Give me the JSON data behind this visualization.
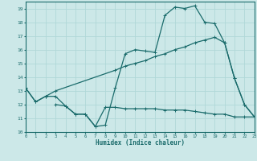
{
  "xlabel": "Humidex (Indice chaleur)",
  "bg_color": "#cce8e8",
  "grid_color": "#b0d8d8",
  "line_color": "#1a6b6b",
  "xlim": [
    0,
    23
  ],
  "ylim": [
    10,
    19.5
  ],
  "xticks": [
    0,
    1,
    2,
    3,
    4,
    5,
    6,
    7,
    8,
    9,
    10,
    11,
    12,
    13,
    14,
    15,
    16,
    17,
    18,
    19,
    20,
    21,
    22,
    23
  ],
  "yticks": [
    10,
    11,
    12,
    13,
    14,
    15,
    16,
    17,
    18,
    19
  ],
  "line1_x": [
    0,
    1,
    2,
    3,
    4,
    5,
    6,
    7,
    8,
    9,
    10,
    11,
    12,
    13,
    14,
    15,
    16,
    17,
    18,
    19,
    20,
    21,
    22,
    23
  ],
  "line1_y": [
    13.2,
    12.2,
    12.6,
    12.6,
    11.9,
    11.3,
    11.3,
    10.4,
    10.5,
    13.2,
    15.7,
    16.0,
    15.9,
    15.8,
    18.5,
    19.1,
    19.0,
    19.2,
    18.0,
    17.9,
    16.5,
    13.9,
    12.0,
    11.1
  ],
  "line2_x": [
    0,
    1,
    2,
    3,
    9,
    10,
    11,
    12,
    13,
    14,
    15,
    16,
    17,
    18,
    19,
    20,
    21,
    22,
    23
  ],
  "line2_y": [
    13.2,
    12.2,
    12.6,
    13.0,
    14.5,
    14.8,
    15.0,
    15.2,
    15.5,
    15.7,
    16.0,
    16.2,
    16.5,
    16.7,
    16.9,
    16.5,
    13.9,
    12.0,
    11.1
  ],
  "line3_x": [
    3,
    4,
    5,
    6,
    7,
    8,
    9,
    10,
    11,
    12,
    13,
    14,
    15,
    16,
    17,
    18,
    19,
    20,
    21,
    22,
    23
  ],
  "line3_y": [
    12.0,
    11.9,
    11.3,
    11.3,
    10.4,
    11.8,
    11.8,
    11.7,
    11.7,
    11.7,
    11.7,
    11.6,
    11.6,
    11.6,
    11.5,
    11.4,
    11.3,
    11.3,
    11.1,
    11.1,
    11.1
  ]
}
